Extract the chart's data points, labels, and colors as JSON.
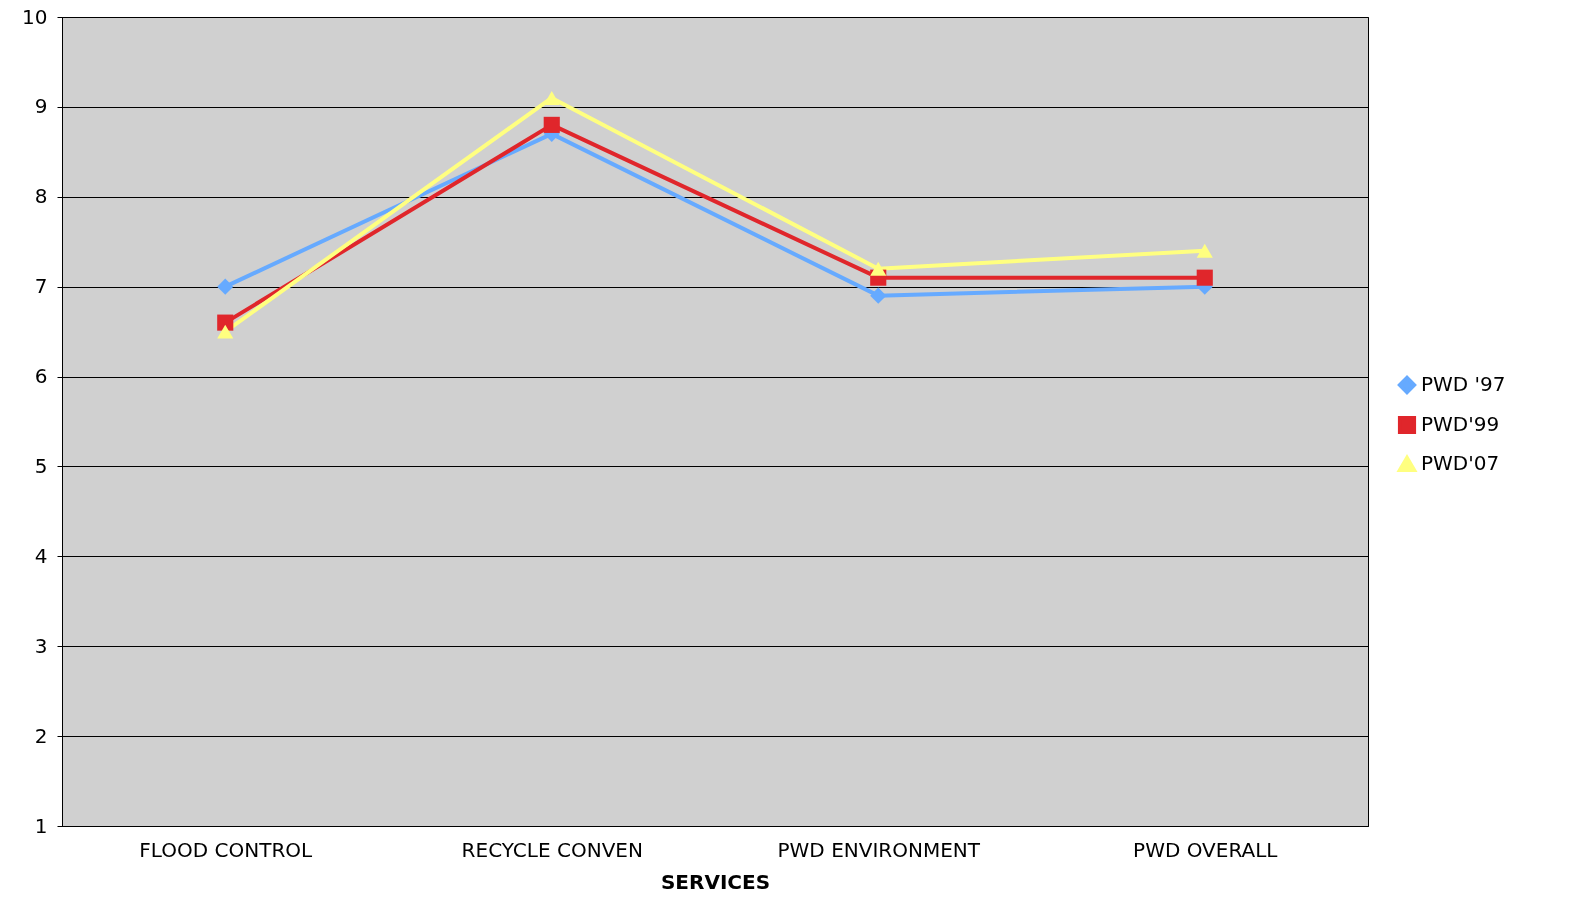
{
  "chart_data": {
    "type": "line",
    "xlabel": "SERVICES",
    "categories": [
      "FLOOD CONTROL",
      "RECYCLE CONVEN",
      "PWD ENVIRONMENT",
      "PWD OVERALL"
    ],
    "series": [
      {
        "name": "PWD '97",
        "color": "#66aaff",
        "marker": "diamond",
        "values": [
          7.0,
          8.7,
          6.9,
          7.0
        ]
      },
      {
        "name": "PWD'99",
        "color": "#e0262b",
        "marker": "square",
        "values": [
          6.6,
          8.8,
          7.1,
          7.1
        ]
      },
      {
        "name": "PWD'07",
        "color": "#ffff80",
        "marker": "triangle",
        "values": [
          6.5,
          9.1,
          7.2,
          7.4
        ]
      }
    ],
    "ylim": [
      1,
      10
    ],
    "yticks": [
      1,
      2,
      3,
      4,
      5,
      6,
      7,
      8,
      9,
      10
    ],
    "grid": "y",
    "legend": "right"
  }
}
